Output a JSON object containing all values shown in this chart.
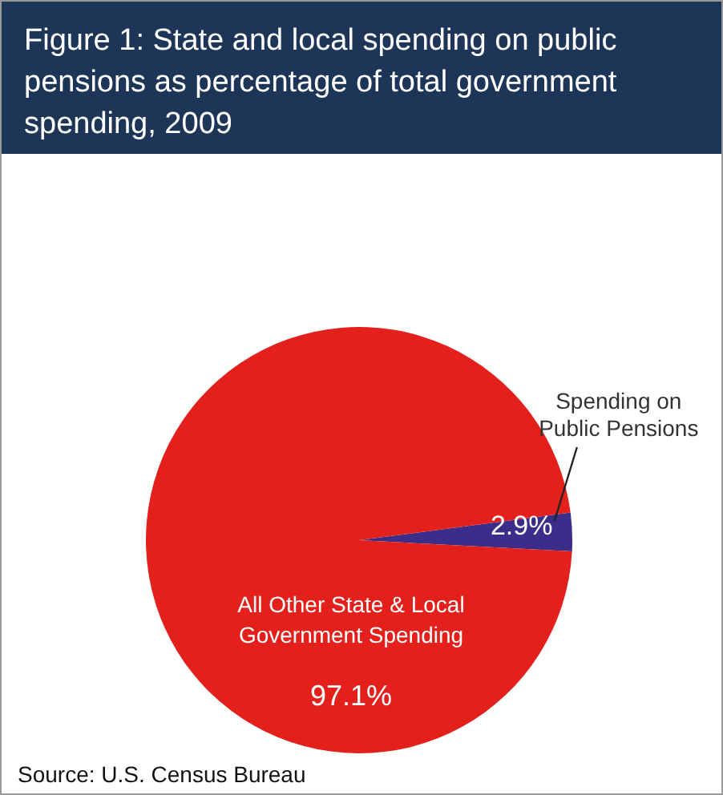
{
  "chart_data": {
    "type": "pie",
    "title": "Figure 1: State and local spending on public pensions as percentage of total government spending, 2009",
    "categories": [
      "Spending on Public Pensions",
      "All Other State & Local Government Spending"
    ],
    "values": [
      2.9,
      97.1
    ],
    "colors": [
      "#3b2d8a",
      "#e3201b"
    ],
    "value_labels": [
      "2.9%",
      "97.1%"
    ],
    "annotations": [
      "Source: U.S. Census Bureau"
    ]
  }
}
